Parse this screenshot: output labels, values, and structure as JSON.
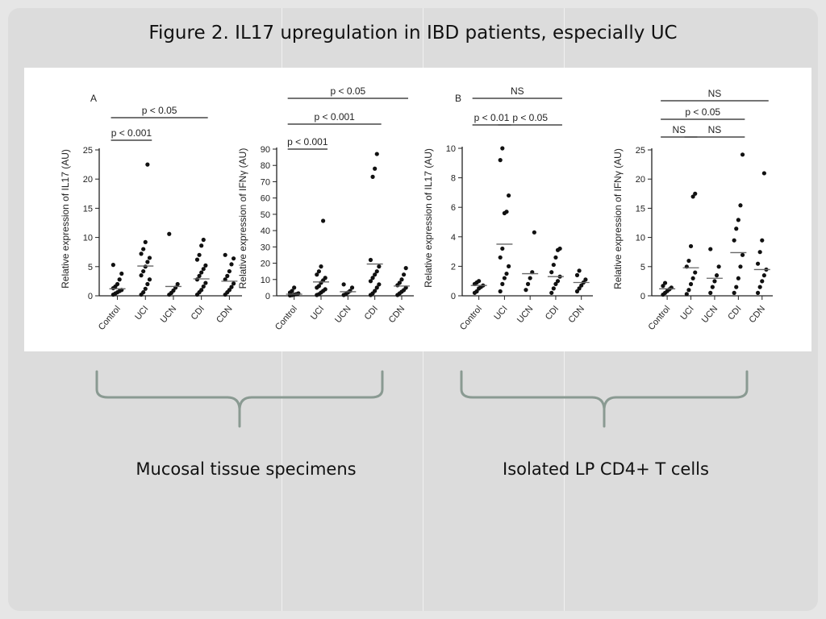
{
  "slide": {
    "title": "Figure 2. IL17 upregulation in IBD patients, especially UC",
    "captions": [
      "Mucosal tissue specimens",
      "Isolated LP CD4+ T cells"
    ]
  },
  "colors": {
    "slide_bg": "#dcdcdc",
    "brace": "#8a9a92",
    "points": "#111111"
  },
  "chart_data": [
    {
      "type": "scatter",
      "panel_label": "A",
      "categories": [
        "Control",
        "UCI",
        "UCN",
        "CDI",
        "CDN"
      ],
      "ylabel": "Relative expression of IL17 (AU)",
      "ylim": [
        0,
        25
      ],
      "yticks": [
        0,
        5,
        10,
        15,
        20,
        25
      ],
      "means": [
        1.2,
        5.1,
        1.6,
        2.9,
        2.5
      ],
      "points": [
        [
          0.2,
          0.4,
          0.6,
          0.8,
          1.0,
          1.3,
          1.6,
          2.0,
          2.8,
          3.8,
          5.3
        ],
        [
          0.2,
          0.6,
          1.2,
          2.0,
          2.8,
          3.5,
          4.2,
          5.0,
          5.8,
          6.5,
          7.2,
          8.0,
          9.2,
          22.5
        ],
        [
          0.2,
          0.5,
          0.9,
          1.4,
          2.0,
          10.6
        ],
        [
          0.2,
          0.6,
          1.0,
          1.6,
          2.2,
          2.8,
          3.4,
          4.0,
          4.6,
          5.2,
          6.2,
          7.0,
          8.6,
          9.6
        ],
        [
          0.2,
          0.6,
          1.0,
          1.5,
          2.1,
          2.8,
          3.4,
          4.2,
          5.4,
          6.4,
          7.0
        ]
      ],
      "comparisons": [
        {
          "label": "p < 0.05",
          "from": 0,
          "to": 3
        },
        {
          "label": "p < 0.001",
          "from": 0,
          "to": 1
        }
      ]
    },
    {
      "type": "scatter",
      "categories": [
        "Control",
        "UCI",
        "UCN",
        "CDI",
        "CDN"
      ],
      "ylabel": "Relative expression of IFNγ (AU)",
      "ylim": [
        0,
        90
      ],
      "yticks": [
        0,
        10,
        20,
        30,
        40,
        50,
        60,
        70,
        80,
        90
      ],
      "means": [
        1.0,
        8.5,
        2.5,
        19.5,
        6.0
      ],
      "points": [
        [
          0.2,
          0.4,
          0.7,
          1.0,
          1.5,
          2.0,
          3.0,
          5.0
        ],
        [
          0.5,
          1.0,
          2.0,
          3.0,
          4.0,
          5.0,
          6.0,
          8.0,
          9.5,
          11.0,
          13.0,
          15.0,
          18.0,
          46.0
        ],
        [
          0.5,
          1.0,
          2.0,
          3.0,
          5.0,
          7.0
        ],
        [
          0.5,
          1.5,
          3.0,
          5.0,
          7.0,
          9.0,
          11.0,
          13.0,
          15.0,
          18.0,
          22.0,
          73.0,
          78.0,
          87.0
        ],
        [
          0.5,
          1.5,
          2.5,
          3.5,
          5.0,
          6.5,
          8.0,
          10.0,
          13.0,
          17.0
        ]
      ],
      "comparisons": [
        {
          "label": "p < 0.05",
          "from": 0,
          "to": 4
        },
        {
          "label": "p < 0.001",
          "from": 0,
          "to": 3
        },
        {
          "label": "p < 0.001",
          "from": 0,
          "to": 1
        }
      ]
    },
    {
      "type": "scatter",
      "panel_label": "B",
      "categories": [
        "Control",
        "UCI",
        "UCN",
        "CDI",
        "CDN"
      ],
      "ylabel": "Relative expression of IL17 (AU)",
      "ylim": [
        0,
        10
      ],
      "yticks": [
        0,
        2,
        4,
        6,
        8,
        10
      ],
      "means": [
        0.7,
        3.5,
        1.5,
        1.3,
        0.9
      ],
      "points": [
        [
          0.2,
          0.3,
          0.5,
          0.6,
          0.7,
          0.8,
          0.9,
          1.0
        ],
        [
          0.3,
          0.8,
          1.2,
          1.5,
          2.0,
          2.6,
          3.2,
          5.6,
          5.7,
          6.8,
          9.2,
          10.0
        ],
        [
          0.4,
          0.8,
          1.2,
          1.6,
          4.3
        ],
        [
          0.2,
          0.5,
          0.8,
          1.0,
          1.3,
          1.6,
          2.1,
          2.6,
          3.1,
          3.2
        ],
        [
          0.3,
          0.5,
          0.7,
          0.9,
          1.1,
          1.4,
          1.7
        ]
      ],
      "comparisons": [
        {
          "label": "NS",
          "from": 0,
          "to": 3
        },
        {
          "label": "p < 0.01",
          "from": 0,
          "to": 1
        },
        {
          "label": "p < 0.05",
          "from": 1,
          "to": 3
        }
      ]
    },
    {
      "type": "scatter",
      "categories": [
        "Control",
        "UCI",
        "UCN",
        "CDI",
        "CDN"
      ],
      "ylabel": "Relative expression of IFNγ (AU)",
      "ylim": [
        0,
        25
      ],
      "yticks": [
        0,
        5,
        10,
        15,
        20,
        25
      ],
      "means": [
        1.2,
        4.8,
        3.0,
        7.4,
        4.5
      ],
      "points": [
        [
          0.2,
          0.5,
          0.8,
          1.1,
          1.4,
          1.7,
          2.2
        ],
        [
          0.3,
          1.0,
          2.0,
          3.0,
          4.0,
          5.0,
          6.0,
          8.5,
          17.0,
          17.5
        ],
        [
          0.5,
          1.5,
          2.5,
          3.5,
          5.0,
          8.0
        ],
        [
          0.5,
          1.5,
          3.0,
          5.0,
          7.0,
          9.5,
          11.5,
          13.0,
          15.5,
          24.2
        ],
        [
          0.5,
          1.5,
          2.5,
          3.5,
          4.5,
          5.5,
          7.5,
          9.5,
          21.0
        ]
      ],
      "comparisons": [
        {
          "label": "NS",
          "from": 0,
          "to": 4
        },
        {
          "label": "p < 0.05",
          "from": 0,
          "to": 3
        },
        {
          "label": "NS",
          "from": 0,
          "to": 1
        },
        {
          "label": "NS",
          "from": 1,
          "to": 3
        }
      ]
    }
  ]
}
